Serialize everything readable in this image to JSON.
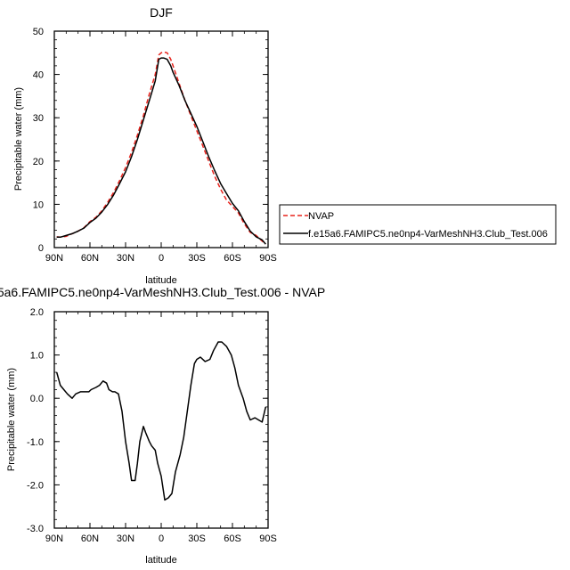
{
  "chart_data": [
    {
      "type": "line",
      "title": "DJF",
      "xlabel": "latitude",
      "ylabel": "Precipitable water (mm)",
      "xlim": [
        -90,
        90
      ],
      "ylim": [
        0,
        50
      ],
      "x_ticks": [
        -90,
        -60,
        -30,
        0,
        30,
        60,
        90
      ],
      "x_tick_labels": [
        "90N",
        "60N",
        "30N",
        "0",
        "30S",
        "60S",
        "90S"
      ],
      "y_ticks": [
        0,
        10,
        20,
        30,
        40,
        50
      ],
      "y_tick_labels": [
        "0",
        "10",
        "20",
        "30",
        "40",
        "50"
      ],
      "legend_position": "right",
      "series": [
        {
          "name": "NVAP",
          "color": "#e8231c",
          "dash": "dashed",
          "x": [
            -88,
            -85,
            -80,
            -75,
            -70,
            -65,
            -60,
            -55,
            -50,
            -45,
            -40,
            -35,
            -30,
            -25,
            -20,
            -15,
            -10,
            -5,
            -2,
            0,
            2,
            5,
            8,
            10,
            15,
            20,
            25,
            30,
            35,
            40,
            45,
            50,
            55,
            60,
            65,
            70,
            75,
            80,
            85,
            88
          ],
          "y": [
            2.5,
            2.4,
            2.6,
            3.2,
            3.8,
            4.6,
            6.0,
            7.0,
            8.5,
            10.5,
            12.8,
            15.5,
            18.5,
            22.0,
            26.0,
            30.5,
            35.5,
            40.0,
            44.5,
            45.0,
            45.2,
            45.0,
            43.5,
            42.0,
            38.0,
            34.0,
            30.5,
            27.0,
            23.5,
            20.0,
            16.5,
            13.5,
            11.0,
            9.5,
            8.0,
            5.5,
            3.5,
            2.8,
            1.5,
            0.8
          ]
        },
        {
          "name": "f.e15a6.FAMIPC5.ne0np4-VarMeshNH3.Club_Test.006",
          "color": "#000000",
          "dash": "solid",
          "x": [
            -88,
            -85,
            -80,
            -75,
            -70,
            -65,
            -60,
            -55,
            -50,
            -45,
            -40,
            -35,
            -30,
            -25,
            -20,
            -15,
            -10,
            -5,
            -2,
            0,
            2,
            5,
            8,
            10,
            15,
            20,
            25,
            30,
            35,
            40,
            45,
            50,
            55,
            60,
            65,
            70,
            75,
            80,
            85,
            88
          ],
          "y": [
            2.4,
            2.4,
            2.8,
            3.2,
            3.8,
            4.5,
            5.8,
            6.8,
            8.2,
            10.0,
            12.2,
            14.8,
            17.5,
            21.0,
            25.0,
            29.5,
            34.0,
            38.5,
            43.5,
            43.8,
            43.8,
            43.5,
            42.0,
            40.5,
            37.5,
            34.0,
            31.0,
            28.0,
            24.5,
            21.0,
            17.8,
            14.8,
            12.5,
            10.2,
            8.5,
            6.0,
            3.8,
            2.5,
            1.8,
            0.8
          ]
        }
      ]
    },
    {
      "type": "line",
      "title": "5a6.FAMIPC5.ne0np4-VarMeshNH3.Club_Test.006 - NVAP",
      "xlabel": "latitude",
      "ylabel": "Precipitable water (mm)",
      "xlim": [
        -90,
        90
      ],
      "ylim": [
        -3.0,
        2.0
      ],
      "x_ticks": [
        -90,
        -60,
        -30,
        0,
        30,
        60,
        90
      ],
      "x_tick_labels": [
        "90N",
        "60N",
        "30N",
        "0",
        "30S",
        "60S",
        "90S"
      ],
      "y_ticks": [
        -3,
        -2,
        -1,
        0,
        1,
        2
      ],
      "y_tick_labels": [
        "-3.0",
        "-2.0",
        "-1.0",
        "0.0",
        "1.0",
        "2.0"
      ],
      "series": [
        {
          "color": "#000000",
          "dash": "solid",
          "x": [
            -88,
            -85,
            -82,
            -79,
            -75,
            -72,
            -68,
            -65,
            -61,
            -59,
            -55,
            -52,
            -49,
            -46,
            -44,
            -41,
            -39,
            -36,
            -33,
            -30,
            -27,
            -25,
            -22,
            -20,
            -18,
            -15,
            -13,
            -10,
            -8,
            -5,
            -3,
            0,
            3,
            6,
            9,
            12,
            16,
            19,
            22,
            25,
            28,
            30,
            33,
            37,
            41,
            44,
            48,
            51,
            55,
            59,
            62,
            65,
            69,
            72,
            75,
            79,
            82,
            85,
            88
          ],
          "y": [
            0.6,
            0.3,
            0.2,
            0.1,
            0.0,
            0.1,
            0.15,
            0.15,
            0.15,
            0.2,
            0.25,
            0.3,
            0.4,
            0.35,
            0.2,
            0.15,
            0.15,
            0.1,
            -0.3,
            -1.0,
            -1.5,
            -1.9,
            -1.9,
            -1.5,
            -1.0,
            -0.65,
            -0.8,
            -1.0,
            -1.1,
            -1.2,
            -1.5,
            -1.8,
            -2.35,
            -2.3,
            -2.2,
            -1.7,
            -1.3,
            -0.9,
            -0.3,
            0.3,
            0.8,
            0.9,
            0.95,
            0.85,
            0.9,
            1.1,
            1.3,
            1.3,
            1.2,
            1.0,
            0.7,
            0.3,
            0.0,
            -0.3,
            -0.5,
            -0.45,
            -0.5,
            -0.55,
            -0.2
          ]
        }
      ]
    }
  ]
}
